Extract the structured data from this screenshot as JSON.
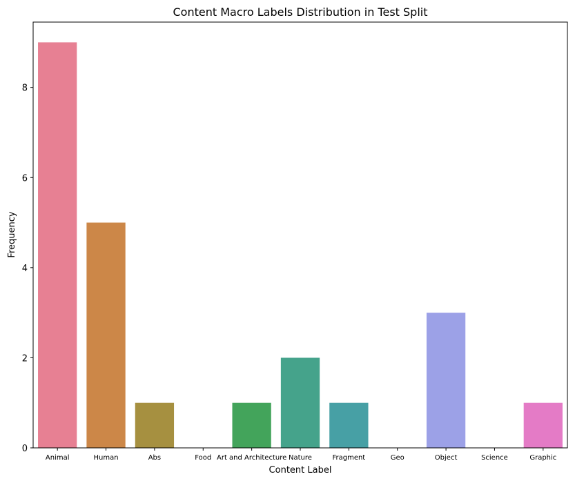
{
  "chart_data": {
    "type": "bar",
    "title": "Content Macro Labels Distribution in Test Split",
    "xlabel": "Content Label",
    "ylabel": "Frequency",
    "categories": [
      "Animal",
      "Human",
      "Abs",
      "Food",
      "Art and Architecture",
      "Nature",
      "Fragment",
      "Geo",
      "Object",
      "Science",
      "Graphic"
    ],
    "values": [
      9,
      5,
      1,
      0,
      1,
      2,
      1,
      0,
      3,
      0,
      1
    ],
    "colors": [
      "#e78093",
      "#cc8748",
      "#a69040",
      "#83963f",
      "#43a45b",
      "#45a38b",
      "#47a0a5",
      "#4a9fc2",
      "#9ca1e7",
      "#cc8ae6",
      "#e47bc6"
    ],
    "yticks": [
      0,
      2,
      4,
      6,
      8
    ],
    "ylim": [
      0,
      9.45
    ],
    "grid": false,
    "legend": "none"
  }
}
